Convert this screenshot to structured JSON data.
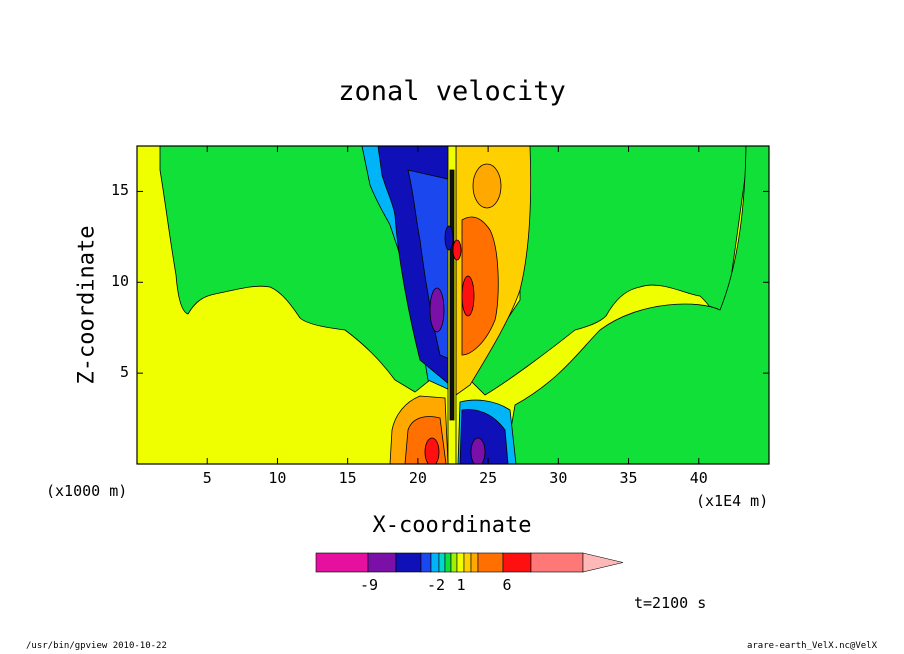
{
  "chart_data": {
    "type": "heatmap",
    "title": "zonal velocity",
    "xlabel": "X-coordinate",
    "ylabel": "Z-coordinate",
    "x_unit": "(x1E4 m)",
    "y_unit": "(x1000 m)",
    "xlim": [
      0,
      45
    ],
    "ylim": [
      0,
      17.5
    ],
    "x_ticks": [
      5,
      10,
      15,
      20,
      25,
      30,
      35,
      40
    ],
    "x_tick_labels": [
      "5",
      "10",
      "15",
      "20",
      "25",
      "30",
      "35",
      "40"
    ],
    "y_ticks": [
      5,
      10,
      15
    ],
    "y_tick_labels": [
      "5",
      "10",
      "15"
    ],
    "colorbar": {
      "colors": [
        "#e5109e",
        "#7a10a8",
        "#1010b8",
        "#1a48ee",
        "#00b4f8",
        "#00d8c8",
        "#10e038",
        "#a0f000",
        "#f0ff00",
        "#ffd000",
        "#ffa800",
        "#ff7000",
        "#ff1010",
        "#ff7878",
        "#ffb8b8"
      ],
      "labels": [
        "-9",
        "-2",
        "1",
        "6"
      ]
    },
    "annotations": {
      "time": "t=2100 s",
      "footer_left": "/usr/bin/gpview   2010-10-22",
      "footer_right": "arare-earth_VelX.nc@VelX"
    },
    "regions": [
      {
        "name": "background-positive",
        "color": "#f0ff00"
      },
      {
        "name": "background-zero",
        "color": "#10e038"
      }
    ]
  }
}
